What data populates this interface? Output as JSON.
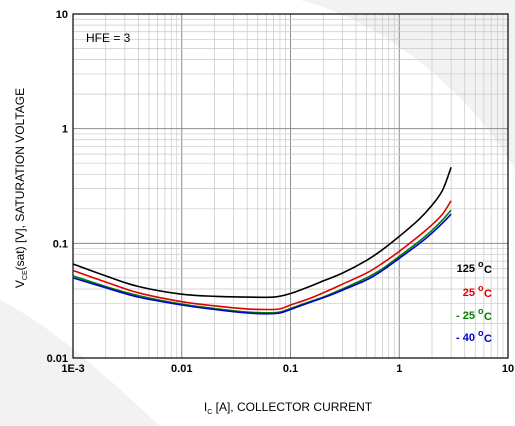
{
  "chart_data": {
    "type": "line",
    "x_scale": "log",
    "y_scale": "log",
    "xlim": [
      0.001,
      10
    ],
    "ylim": [
      0.01,
      10
    ],
    "grid": true,
    "x_ticks": [
      "1E-3",
      "0.01",
      "0.1",
      "1",
      "10"
    ],
    "y_ticks": [
      "0.01",
      "0.1",
      "1",
      "10"
    ],
    "xlabel": {
      "main_pre": "I",
      "sub": "C",
      "main_post": " [A], COLLECTOR CURRENT"
    },
    "ylabel": {
      "main_pre": "V",
      "sub": "CE",
      "main_post": "(sat) [V], SATURATION VOLTAGE"
    },
    "annotation": "HFE = 3",
    "legend_placement": "right",
    "series": [
      {
        "name": "125 °C",
        "label_text": "125",
        "degree": "o",
        "unit": "C",
        "color": "#000000",
        "points": [
          [
            0.001,
            0.066
          ],
          [
            0.002,
            0.052
          ],
          [
            0.004,
            0.042
          ],
          [
            0.01,
            0.036
          ],
          [
            0.02,
            0.0345
          ],
          [
            0.04,
            0.034
          ],
          [
            0.07,
            0.034
          ],
          [
            0.1,
            0.0365
          ],
          [
            0.15,
            0.042
          ],
          [
            0.2,
            0.047
          ],
          [
            0.3,
            0.055
          ],
          [
            0.5,
            0.071
          ],
          [
            0.7,
            0.088
          ],
          [
            1.0,
            0.115
          ],
          [
            1.5,
            0.16
          ],
          [
            2.0,
            0.215
          ],
          [
            2.5,
            0.29
          ],
          [
            3.0,
            0.46
          ]
        ]
      },
      {
        "name": "25 °C",
        "label_text": "25",
        "degree": "o",
        "unit": "C",
        "color": "#e00000",
        "points": [
          [
            0.001,
            0.058
          ],
          [
            0.002,
            0.046
          ],
          [
            0.004,
            0.037
          ],
          [
            0.01,
            0.031
          ],
          [
            0.02,
            0.0285
          ],
          [
            0.04,
            0.0268
          ],
          [
            0.06,
            0.0265
          ],
          [
            0.08,
            0.0268
          ],
          [
            0.1,
            0.029
          ],
          [
            0.15,
            0.033
          ],
          [
            0.2,
            0.037
          ],
          [
            0.3,
            0.044
          ],
          [
            0.5,
            0.055
          ],
          [
            0.7,
            0.067
          ],
          [
            1.0,
            0.085
          ],
          [
            1.5,
            0.115
          ],
          [
            2.0,
            0.145
          ],
          [
            2.5,
            0.18
          ],
          [
            3.0,
            0.235
          ]
        ]
      },
      {
        "name": "- 25 °C",
        "label_text": "- 25",
        "degree": "o",
        "unit": "C",
        "color": "#008000",
        "points": [
          [
            0.001,
            0.052
          ],
          [
            0.002,
            0.042
          ],
          [
            0.004,
            0.035
          ],
          [
            0.01,
            0.0295
          ],
          [
            0.02,
            0.027
          ],
          [
            0.04,
            0.0252
          ],
          [
            0.06,
            0.0248
          ],
          [
            0.08,
            0.0252
          ],
          [
            0.1,
            0.027
          ],
          [
            0.15,
            0.031
          ],
          [
            0.2,
            0.034
          ],
          [
            0.3,
            0.04
          ],
          [
            0.5,
            0.05
          ],
          [
            0.7,
            0.06
          ],
          [
            1.0,
            0.077
          ],
          [
            1.5,
            0.103
          ],
          [
            2.0,
            0.13
          ],
          [
            2.5,
            0.16
          ],
          [
            3.0,
            0.195
          ]
        ]
      },
      {
        "name": "- 40 °C",
        "label_text": "- 40",
        "degree": "o",
        "unit": "C",
        "color": "#0000cc",
        "points": [
          [
            0.001,
            0.05
          ],
          [
            0.002,
            0.041
          ],
          [
            0.004,
            0.034
          ],
          [
            0.01,
            0.029
          ],
          [
            0.02,
            0.0265
          ],
          [
            0.04,
            0.0247
          ],
          [
            0.06,
            0.0243
          ],
          [
            0.08,
            0.0247
          ],
          [
            0.1,
            0.0265
          ],
          [
            0.15,
            0.0305
          ],
          [
            0.2,
            0.0335
          ],
          [
            0.3,
            0.039
          ],
          [
            0.5,
            0.048
          ],
          [
            0.7,
            0.058
          ],
          [
            1.0,
            0.074
          ],
          [
            1.5,
            0.098
          ],
          [
            2.0,
            0.123
          ],
          [
            2.5,
            0.15
          ],
          [
            3.0,
            0.18
          ]
        ]
      }
    ]
  }
}
